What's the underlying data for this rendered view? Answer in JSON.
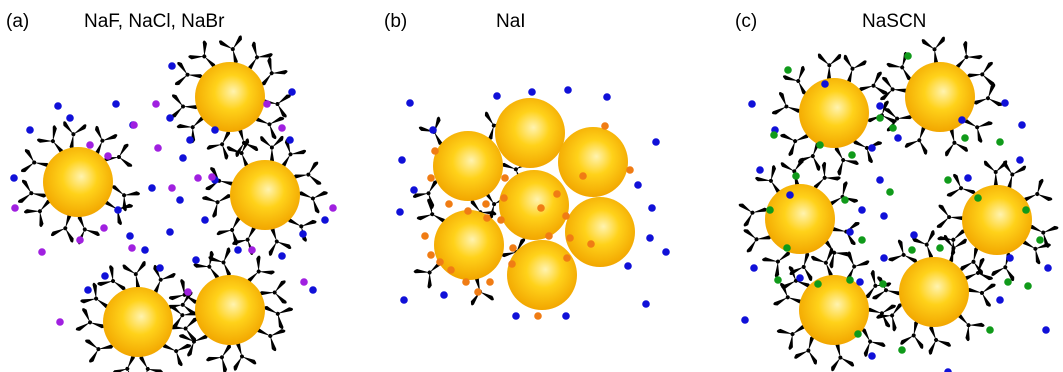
{
  "panels": [
    {
      "id": "a",
      "letter": "(a)",
      "title": "NaF, NaCl, NaBr"
    },
    {
      "id": "b",
      "letter": "(b)",
      "title": "NaI"
    },
    {
      "id": "c",
      "letter": "(c)",
      "title": "NaSCN"
    }
  ],
  "colors": {
    "sphere_core": "#fff3b0",
    "sphere_mid": "#ffd21a",
    "sphere_edge": "#f2a600",
    "cation_dot": "#1010d8",
    "anion_purple": "#a020e0",
    "anion_orange": "#f07c14",
    "anion_green": "#109a1a",
    "surfactant": "#000000"
  }
}
